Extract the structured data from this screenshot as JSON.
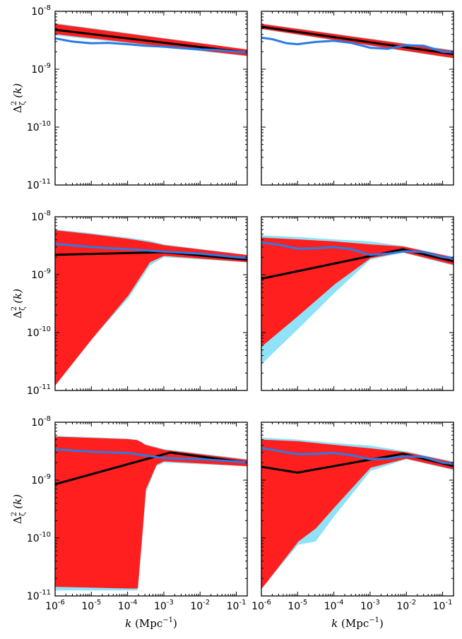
{
  "chart_data": {
    "type": "line",
    "layout": "3 rows x 2 columns of log-log panels",
    "xscale": "log",
    "yscale": "log",
    "xlim": [
      1e-06,
      0.2
    ],
    "ylim": [
      1e-11,
      1e-08
    ],
    "grid": false,
    "legend": "none",
    "x_tick_labels": [
      {
        "value": 1e-06,
        "base": "10",
        "exp": "-6"
      },
      {
        "value": 1e-05,
        "base": "10",
        "exp": "-5"
      },
      {
        "value": 0.0001,
        "base": "10",
        "exp": "-4"
      },
      {
        "value": 0.001,
        "base": "10",
        "exp": "-3"
      },
      {
        "value": 0.01,
        "base": "10",
        "exp": "-2"
      },
      {
        "value": 0.1,
        "base": "10",
        "exp": "-1"
      }
    ],
    "y_tick_labels": [
      {
        "value": 1e-08,
        "base": "10",
        "exp": "-8"
      },
      {
        "value": 1e-09,
        "base": "10",
        "exp": "-9"
      },
      {
        "value": 1e-10,
        "base": "10",
        "exp": "-10"
      },
      {
        "value": 1e-11,
        "base": "10",
        "exp": "-11"
      }
    ],
    "xlabel": {
      "symbol": "k",
      "unit": "(Mpc",
      "unit_exp": "−1",
      "close": ")"
    },
    "ylabel": {
      "symbol": "Δ",
      "sup": "2",
      "sub": "ζ",
      "arg": "(k)"
    },
    "colors": {
      "band_outer": "#8fe2f7",
      "band_inner": "#ff1f1f",
      "median": "#000000",
      "reference": "#2b7be4"
    },
    "panels": [
      {
        "row": 1,
        "col": 1,
        "outer_band": [
          [
            1e-06,
            6e-09,
            4e-09
          ],
          [
            0.2,
            2.1e-09,
            1.75e-09
          ]
        ],
        "inner_band": [
          [
            1e-06,
            5.8e-09,
            4.2e-09
          ],
          [
            0.2,
            2.1e-09,
            1.78e-09
          ]
        ],
        "median": [
          [
            1e-06,
            4.8e-09
          ],
          [
            0.2,
            1.93e-09
          ]
        ],
        "reference": [
          [
            1e-06,
            3.4e-09
          ],
          [
            3e-06,
            3e-09
          ],
          [
            1e-05,
            2.8e-09
          ],
          [
            3e-05,
            2.85e-09
          ],
          [
            0.0001,
            2.7e-09
          ],
          [
            0.0003,
            2.55e-09
          ],
          [
            0.001,
            2.45e-09
          ],
          [
            0.003,
            2.3e-09
          ],
          [
            0.01,
            2.2e-09
          ],
          [
            0.03,
            2.15e-09
          ],
          [
            0.1,
            2e-09
          ],
          [
            0.2,
            1.95e-09
          ]
        ]
      },
      {
        "row": 1,
        "col": 2,
        "outer_band": [
          [
            1e-06,
            5.9e-09,
            5.1e-09
          ],
          [
            0.2,
            2.05e-09,
            1.6e-09
          ]
        ],
        "inner_band": [
          [
            1e-06,
            5.8e-09,
            5.2e-09
          ],
          [
            0.2,
            2e-09,
            1.62e-09
          ]
        ],
        "median": [
          [
            1e-06,
            5.4e-09
          ],
          [
            0.2,
            1.82e-09
          ]
        ],
        "reference": [
          [
            1e-06,
            3.5e-09
          ],
          [
            2e-06,
            3.3e-09
          ],
          [
            5e-06,
            2.8e-09
          ],
          [
            1e-05,
            2.7e-09
          ],
          [
            3e-05,
            2.95e-09
          ],
          [
            0.0001,
            3.1e-09
          ],
          [
            0.0003,
            2.85e-09
          ],
          [
            0.001,
            2.35e-09
          ],
          [
            0.003,
            2.25e-09
          ],
          [
            0.01,
            2.6e-09
          ],
          [
            0.03,
            2.55e-09
          ],
          [
            0.1,
            2e-09
          ],
          [
            0.2,
            1.95e-09
          ]
        ]
      },
      {
        "row": 2,
        "col": 1,
        "outer_band": [
          [
            1e-06,
            5.8e-09,
            1.3e-11
          ],
          [
            1e-05,
            5e-09,
            8e-11
          ],
          [
            0.0001,
            4.2e-09,
            4e-10
          ],
          [
            0.0004,
            3.7e-09,
            1.5e-09
          ],
          [
            0.001,
            3.2e-09,
            2.1e-09
          ],
          [
            0.2,
            2.1e-09,
            1.7e-09
          ]
        ],
        "inner_band": [
          [
            1e-06,
            5.6e-09,
            1.3e-11
          ],
          [
            1e-05,
            4.8e-09,
            8e-11
          ],
          [
            0.0001,
            4e-09,
            4.5e-10
          ],
          [
            0.0004,
            3.5e-09,
            1.7e-09
          ],
          [
            0.001,
            3.1e-09,
            2.2e-09
          ],
          [
            0.2,
            2.1e-09,
            1.72e-09
          ]
        ],
        "median": [
          [
            1e-06,
            2.2e-09
          ],
          [
            0.001,
            2.45e-09
          ],
          [
            0.2,
            1.82e-09
          ]
        ],
        "reference": [
          [
            1e-06,
            3.4e-09
          ],
          [
            1e-05,
            3e-09
          ],
          [
            0.0001,
            2.75e-09
          ],
          [
            0.001,
            2.5e-09
          ],
          [
            0.01,
            2.3e-09
          ],
          [
            0.1,
            2e-09
          ],
          [
            0.2,
            1.95e-09
          ]
        ]
      },
      {
        "row": 2,
        "col": 2,
        "outer_band": [
          [
            1e-06,
            4.6e-09,
            3e-11
          ],
          [
            1e-05,
            4.3e-09,
            1.2e-10
          ],
          [
            0.0001,
            3.9e-09,
            5e-10
          ],
          [
            0.001,
            3.6e-09,
            1.9e-09
          ],
          [
            0.008,
            3e-09,
            2.5e-09
          ],
          [
            0.2,
            1.95e-09,
            1.5e-09
          ]
        ],
        "inner_band": [
          [
            1e-06,
            4.2e-09,
            6e-11
          ],
          [
            1e-05,
            3.9e-09,
            2e-10
          ],
          [
            0.0001,
            3.6e-09,
            7e-10
          ],
          [
            0.001,
            3.2e-09,
            2e-09
          ],
          [
            0.008,
            2.95e-09,
            2.55e-09
          ],
          [
            0.2,
            1.9e-09,
            1.55e-09
          ]
        ],
        "median": [
          [
            1e-06,
            8.5e-10
          ],
          [
            0.008,
            2.75e-09
          ],
          [
            0.2,
            1.7e-09
          ]
        ],
        "reference": [
          [
            1e-06,
            3.6e-09
          ],
          [
            3e-06,
            3.3e-09
          ],
          [
            1e-05,
            2.8e-09
          ],
          [
            3e-05,
            2.85e-09
          ],
          [
            0.0001,
            3e-09
          ],
          [
            0.0003,
            2.75e-09
          ],
          [
            0.001,
            2.2e-09
          ],
          [
            0.003,
            2.3e-09
          ],
          [
            0.01,
            2.55e-09
          ],
          [
            0.03,
            2.45e-09
          ],
          [
            0.1,
            2e-09
          ],
          [
            0.2,
            1.9e-09
          ]
        ]
      },
      {
        "row": 3,
        "col": 1,
        "outer_band": [
          [
            1e-06,
            5.6e-09,
            1.3e-11
          ],
          [
            0.0001,
            5e-09,
            1.3e-11
          ],
          [
            0.00018,
            4.8e-09,
            1.3e-11
          ],
          [
            0.00024,
            4.4e-09,
            1e-10
          ],
          [
            0.0003,
            4e-09,
            6e-10
          ],
          [
            0.0006,
            3.6e-09,
            1.8e-09
          ],
          [
            0.001,
            3.3e-09,
            2.1e-09
          ],
          [
            0.2,
            2.2e-09,
            1.8e-09
          ]
        ],
        "inner_band": [
          [
            1e-06,
            5.4e-09,
            1.5e-11
          ],
          [
            0.0001,
            4.9e-09,
            1.4e-11
          ],
          [
            0.00018,
            4.7e-09,
            1.4e-11
          ],
          [
            0.00024,
            4.3e-09,
            1.2e-10
          ],
          [
            0.0003,
            3.9e-09,
            7e-10
          ],
          [
            0.0006,
            3.5e-09,
            1.9e-09
          ],
          [
            0.001,
            3.2e-09,
            2.2e-09
          ],
          [
            0.2,
            2.15e-09,
            1.82e-09
          ]
        ],
        "median": [
          [
            1e-06,
            8.5e-10
          ],
          [
            0.0015,
            3e-09
          ],
          [
            0.2,
            2e-09
          ]
        ],
        "reference": [
          [
            1e-06,
            3.4e-09
          ],
          [
            1e-05,
            3.1e-09
          ],
          [
            0.0001,
            2.95e-09
          ],
          [
            0.001,
            2.4e-09
          ],
          [
            0.01,
            2.3e-09
          ],
          [
            0.1,
            2.1e-09
          ],
          [
            0.2,
            2e-09
          ]
        ]
      },
      {
        "row": 3,
        "col": 2,
        "outer_band": [
          [
            1e-06,
            5.2e-09,
            1.4e-11
          ],
          [
            1e-05,
            4.8e-09,
            8e-11
          ],
          [
            3e-05,
            4.5e-09,
            9e-11
          ],
          [
            0.0001,
            4.2e-09,
            2.5e-10
          ],
          [
            0.001,
            3.8e-09,
            1.5e-09
          ],
          [
            0.01,
            3e-09,
            2.4e-09
          ],
          [
            0.2,
            2e-09,
            1.55e-09
          ]
        ],
        "inner_band": [
          [
            1e-06,
            4.8e-09,
            1.4e-11
          ],
          [
            1e-05,
            4.5e-09,
            9e-11
          ],
          [
            3e-05,
            4.2e-09,
            1.5e-10
          ],
          [
            0.0001,
            3.9e-09,
            3.5e-10
          ],
          [
            0.001,
            3.4e-09,
            1.7e-09
          ],
          [
            0.01,
            2.9e-09,
            2.45e-09
          ],
          [
            0.2,
            1.95e-09,
            1.6e-09
          ]
        ],
        "median": [
          [
            1e-06,
            1.7e-09
          ],
          [
            1e-05,
            1.35e-09
          ],
          [
            0.008,
            2.85e-09
          ],
          [
            0.2,
            1.75e-09
          ]
        ],
        "reference": [
          [
            1e-06,
            3.6e-09
          ],
          [
            3e-06,
            3.2e-09
          ],
          [
            1e-05,
            2.8e-09
          ],
          [
            3e-05,
            2.85e-09
          ],
          [
            0.0001,
            2.95e-09
          ],
          [
            0.0003,
            2.7e-09
          ],
          [
            0.001,
            2.3e-09
          ],
          [
            0.003,
            2.35e-09
          ],
          [
            0.01,
            2.6e-09
          ],
          [
            0.03,
            2.5e-09
          ],
          [
            0.1,
            2e-09
          ],
          [
            0.2,
            1.9e-09
          ]
        ]
      }
    ]
  }
}
